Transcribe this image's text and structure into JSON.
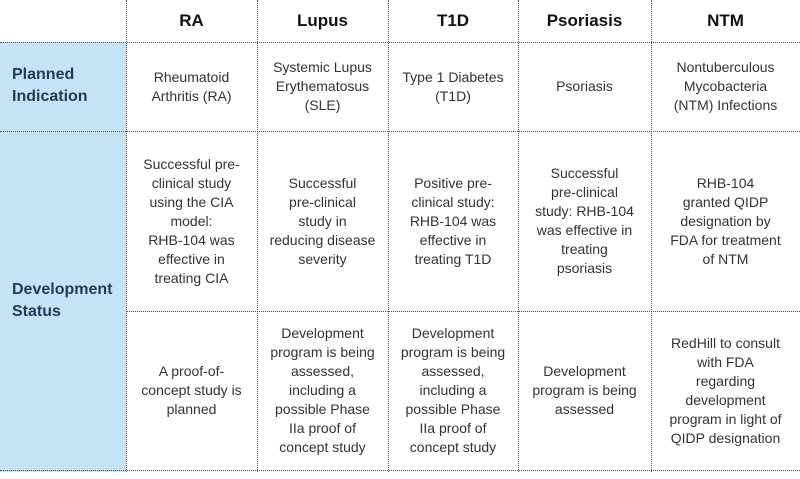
{
  "columns": [
    "RA",
    "Lupus",
    "T1D",
    "Psoriasis",
    "NTM"
  ],
  "rows": {
    "planned_indication": {
      "label": "Planned\nIndication",
      "cells": [
        "Rheumatoid\nArthritis (RA)",
        "Systemic Lupus\nErythematosus\n(SLE)",
        "Type 1 Diabetes\n(T1D)",
        "Psoriasis",
        "Nontuberculous\nMycobacteria\n(NTM) Infections"
      ]
    },
    "development_status": {
      "label": "Development\nStatus",
      "preclinical": [
        "Successful pre-\nclinical study\nusing the CIA\nmodel:\nRHB-104 was\neffective in\ntreating CIA",
        "Successful\npre-clinical\nstudy in\nreducing disease\nseverity",
        "Positive pre-\nclinical study:\nRHB-104 was\neffective in\ntreating T1D",
        "Successful\npre-clinical\nstudy: RHB-104\nwas effective in\ntreating\npsoriasis",
        "RHB-104\ngranted QIDP\ndesignation by\nFDA for treatment\nof NTM"
      ],
      "program": [
        "A proof-of-\nconcept study is\nplanned",
        "Development\nprogram is being\nassessed,\nincluding a\npossible Phase\nIIa proof of\nconcept study",
        "Development\nprogram is being\nassessed,\nincluding a\npossible Phase\nIIa proof of\nconcept study",
        "Development\nprogram is being\nassessed",
        "RedHill to consult\nwith FDA\nregarding\ndevelopment\nprogram in light of\nQIDP designation"
      ]
    }
  },
  "colors": {
    "side_fill": "#c4e4f6",
    "side_text": "#1f3b57"
  }
}
